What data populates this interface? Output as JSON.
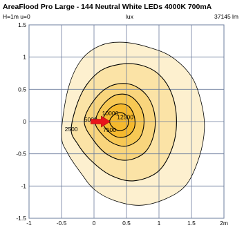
{
  "header": {
    "title": "AreaFlood Pro Large - 144 Neutral White LEDs 4000K 700mA",
    "mounting": "H=1m u=0",
    "unit": "lux",
    "flux": "37145 lm"
  },
  "colors": {
    "fill_levels": [
      "#fdf0cf",
      "#fbe3a6",
      "#f9d57d",
      "#f7c854",
      "#f5b92e"
    ],
    "contour_line": "#000000",
    "grid": "#6b7c9c",
    "arrow": "#e8141c"
  },
  "chart_data": {
    "type": "contour",
    "title": "AreaFlood Pro Large - 144 Neutral White LEDs 4000K 700mA",
    "xlabel": "",
    "ylabel": "",
    "unit": "lux",
    "xlim": [
      -1,
      2
    ],
    "ylim": [
      -1.5,
      1.5
    ],
    "x_ticks": [
      "-1",
      "-0.5",
      "0",
      "0.5",
      "1",
      "1.5",
      "2m"
    ],
    "y_ticks": [
      "1.5",
      "1",
      "0.5",
      "0",
      "-0.5",
      "-1",
      "-1.5"
    ],
    "grid": true,
    "arrow": {
      "x": 0.1,
      "y": 0,
      "direction": "right"
    },
    "contours": [
      {
        "level": 1000,
        "label": "",
        "points": [
          [
            -0.5,
            -0.2
          ],
          [
            -0.4,
            0.5
          ],
          [
            -0.2,
            0.95
          ],
          [
            0.1,
            1.18
          ],
          [
            0.45,
            1.23
          ],
          [
            0.85,
            1.15
          ],
          [
            1.2,
            1.0
          ],
          [
            1.5,
            0.7
          ],
          [
            1.65,
            0.3
          ],
          [
            1.7,
            -0.1
          ],
          [
            1.62,
            -0.55
          ],
          [
            1.42,
            -0.98
          ],
          [
            1.1,
            -1.2
          ],
          [
            0.7,
            -1.3
          ],
          [
            0.3,
            -1.22
          ],
          [
            0.0,
            -1.05
          ],
          [
            -0.2,
            -0.8
          ],
          [
            -0.4,
            -0.5
          ]
        ]
      },
      {
        "level": 2500,
        "label": "2500",
        "points": [
          [
            -0.35,
            -0.1
          ],
          [
            -0.2,
            0.42
          ],
          [
            0.05,
            0.75
          ],
          [
            0.35,
            0.88
          ],
          [
            0.7,
            0.88
          ],
          [
            1.0,
            0.73
          ],
          [
            1.2,
            0.42
          ],
          [
            1.27,
            0.0
          ],
          [
            1.2,
            -0.42
          ],
          [
            0.98,
            -0.78
          ],
          [
            0.6,
            -0.92
          ],
          [
            0.25,
            -0.83
          ],
          [
            -0.05,
            -0.6
          ],
          [
            -0.25,
            -0.35
          ]
        ]
      },
      {
        "level": 5000,
        "label": "5000",
        "points": [
          [
            -0.15,
            0.0
          ],
          [
            0.0,
            0.33
          ],
          [
            0.25,
            0.55
          ],
          [
            0.55,
            0.58
          ],
          [
            0.8,
            0.42
          ],
          [
            0.93,
            0.13
          ],
          [
            0.92,
            -0.2
          ],
          [
            0.78,
            -0.48
          ],
          [
            0.5,
            -0.6
          ],
          [
            0.22,
            -0.52
          ],
          [
            0.0,
            -0.3
          ]
        ]
      },
      {
        "level": 7500,
        "label": "7500",
        "points": [
          [
            0.02,
            0.0
          ],
          [
            0.13,
            0.25
          ],
          [
            0.33,
            0.41
          ],
          [
            0.55,
            0.4
          ],
          [
            0.72,
            0.22
          ],
          [
            0.77,
            -0.02
          ],
          [
            0.7,
            -0.26
          ],
          [
            0.5,
            -0.38
          ],
          [
            0.28,
            -0.33
          ],
          [
            0.1,
            -0.17
          ]
        ]
      },
      {
        "level": 10000,
        "label": "10000",
        "points": [
          [
            0.13,
            0.0
          ],
          [
            0.22,
            0.18
          ],
          [
            0.37,
            0.27
          ],
          [
            0.53,
            0.24
          ],
          [
            0.62,
            0.08
          ],
          [
            0.62,
            -0.1
          ],
          [
            0.52,
            -0.22
          ],
          [
            0.36,
            -0.24
          ],
          [
            0.22,
            -0.15
          ]
        ]
      },
      {
        "level": 12500,
        "label": "12500",
        "points": [
          [
            0.24,
            0.0
          ],
          [
            0.3,
            0.1
          ],
          [
            0.4,
            0.14
          ],
          [
            0.49,
            0.1
          ],
          [
            0.53,
            0.0
          ],
          [
            0.5,
            -0.1
          ],
          [
            0.4,
            -0.14
          ],
          [
            0.3,
            -0.1
          ]
        ]
      }
    ]
  }
}
